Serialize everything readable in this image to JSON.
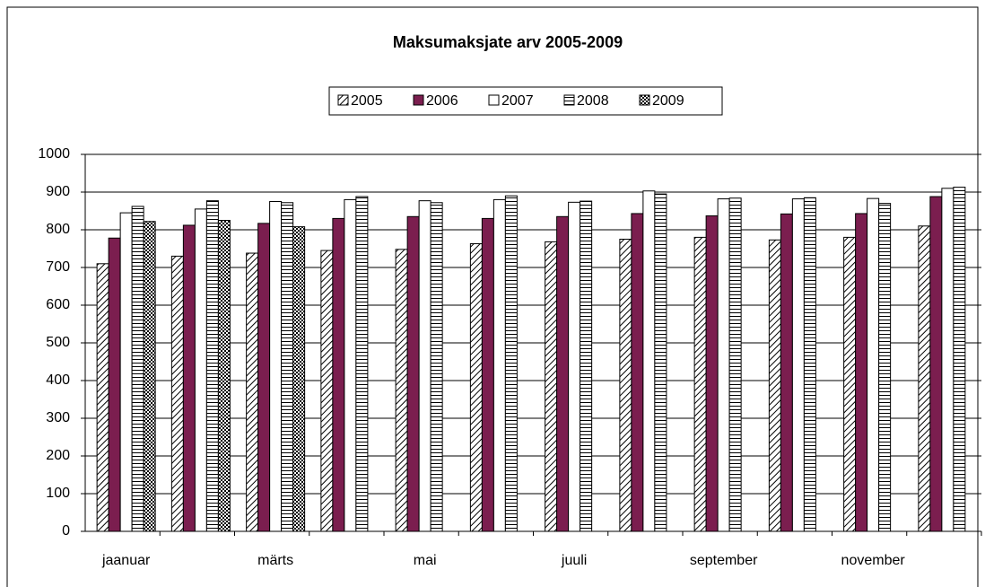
{
  "chart_data": {
    "type": "bar",
    "title": "Maksumaksjate arv 2005-2009",
    "categories": [
      "jaanuar",
      null,
      "märts",
      null,
      "mai",
      null,
      "juuli",
      null,
      "september",
      null,
      "november",
      null
    ],
    "series": [
      {
        "name": "2005",
        "color": "#000000",
        "pattern": "diagonal",
        "values": [
          710,
          730,
          738,
          745,
          748,
          763,
          768,
          775,
          780,
          773,
          780,
          810
        ]
      },
      {
        "name": "2006",
        "color": "#7b1e4f",
        "pattern": "solid",
        "values": [
          778,
          812,
          817,
          830,
          835,
          830,
          835,
          843,
          837,
          842,
          843,
          888
        ]
      },
      {
        "name": "2007",
        "color": "#ffffff",
        "pattern": "solid",
        "values": [
          845,
          855,
          875,
          880,
          877,
          880,
          873,
          903,
          882,
          882,
          883,
          910
        ]
      },
      {
        "name": "2008",
        "color": "#000000",
        "pattern": "horizontal",
        "values": [
          862,
          877,
          872,
          888,
          872,
          890,
          876,
          895,
          884,
          885,
          870,
          913
        ]
      },
      {
        "name": "2009",
        "color": "#000000",
        "pattern": "checker",
        "values": [
          822,
          825,
          808,
          null,
          null,
          null,
          null,
          null,
          null,
          null,
          null,
          null
        ]
      }
    ],
    "ylim": [
      0,
      1000
    ],
    "yticks": [
      0,
      100,
      200,
      300,
      400,
      500,
      600,
      700,
      800,
      900,
      1000
    ],
    "grid": true,
    "legend": "top"
  }
}
